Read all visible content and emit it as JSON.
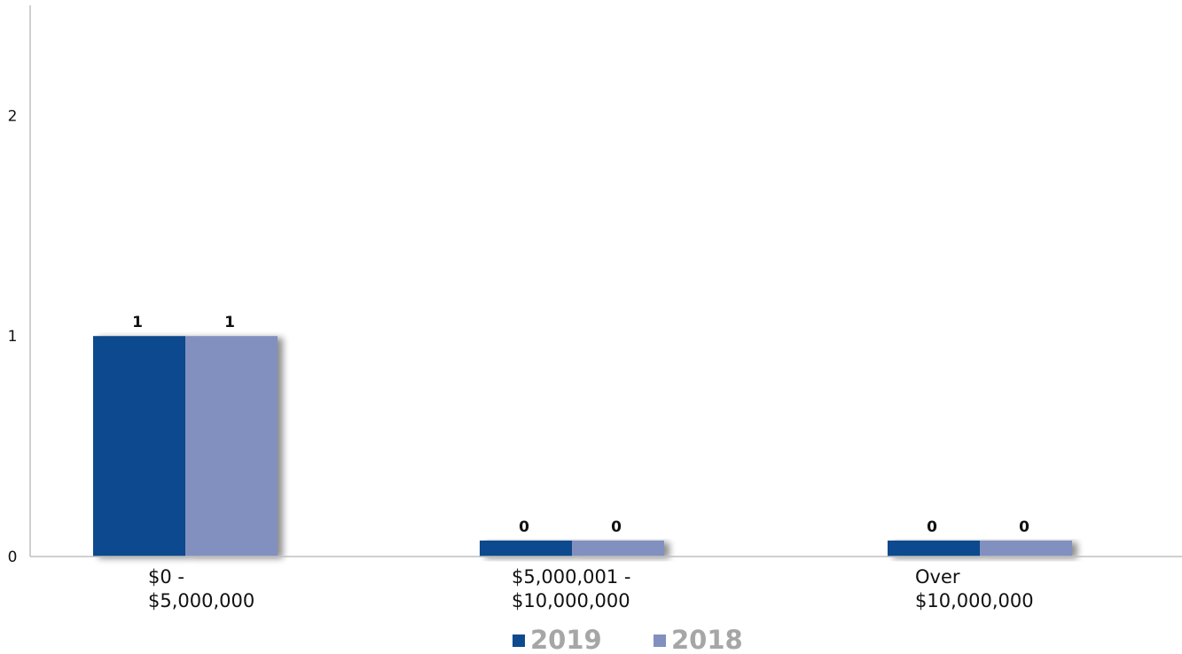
{
  "chart_data": {
    "type": "bar",
    "categories": [
      [
        "$0 -",
        "$5,000,000"
      ],
      [
        "$5,000,001 -",
        "$10,000,000"
      ],
      [
        "Over",
        "$10,000,000"
      ]
    ],
    "series": [
      {
        "name": "2019",
        "values": [
          1,
          0,
          0
        ],
        "color": "#0f4a8e"
      },
      {
        "name": "2018",
        "values": [
          1,
          0,
          0
        ],
        "color": "#8290bf"
      }
    ],
    "yticks": [
      "0",
      "1",
      "2"
    ],
    "ylim": [
      0,
      2.5
    ],
    "grid": false,
    "legend": "bottom-center"
  }
}
